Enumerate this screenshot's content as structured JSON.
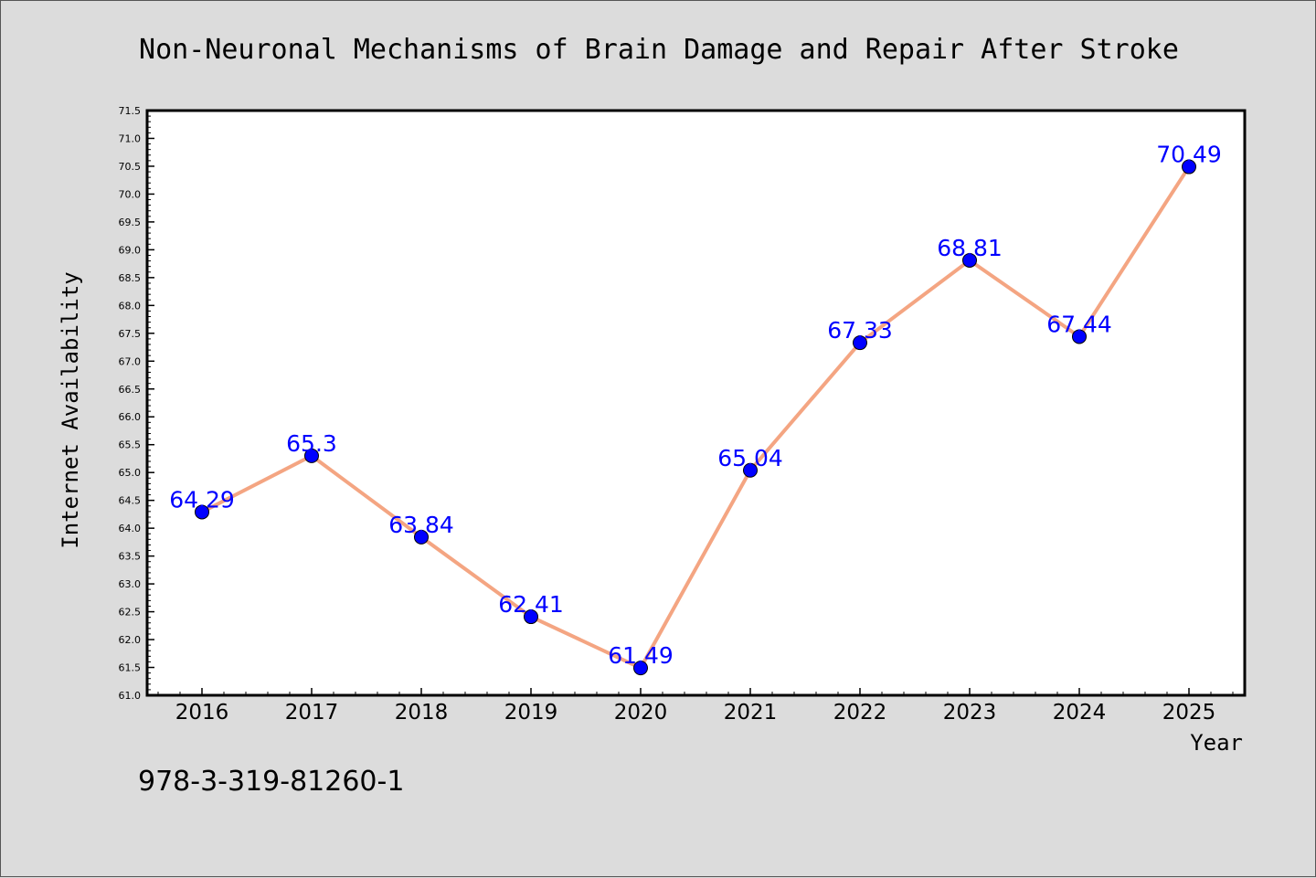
{
  "chart_data": {
    "type": "line",
    "title": "Non-Neuronal Mechanisms of Brain Damage and Repair After Stroke",
    "xlabel": "Year",
    "ylabel": "Internet Availability",
    "x": [
      "2016",
      "2017",
      "2018",
      "2019",
      "2020",
      "2021",
      "2022",
      "2023",
      "2024",
      "2025"
    ],
    "y": [
      64.29,
      65.3,
      63.84,
      62.41,
      61.49,
      65.04,
      67.33,
      68.81,
      67.44,
      70.49
    ],
    "data_labels": [
      "64.29",
      "65.3",
      "63.84",
      "62.41",
      "61.49",
      "65.04",
      "67.33",
      "68.81",
      "67.44",
      "70.49"
    ],
    "ylim": [
      61.0,
      71.5
    ],
    "yticks": [
      "61.0",
      "61.5",
      "62.0",
      "62.5",
      "63.0",
      "63.5",
      "64.0",
      "64.5",
      "65.0",
      "65.5",
      "66.0",
      "66.5",
      "67.0",
      "67.5",
      "68.0",
      "68.5",
      "69.0",
      "69.5",
      "70.0",
      "70.5",
      "71.0",
      "71.5"
    ],
    "grid": false,
    "legend": "none",
    "colors": {
      "line": "#f4a582",
      "marker": "#0000ff",
      "label": "#0000ff",
      "background": "#dcdcdc",
      "plot_background": "#ffffff"
    }
  },
  "footer": {
    "code": "978-3-319-81260-1"
  }
}
